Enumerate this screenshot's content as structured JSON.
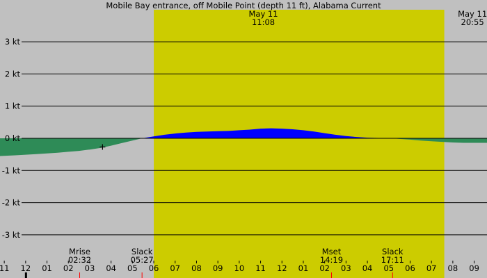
{
  "chart_data": {
    "type": "area",
    "title": "Mobile Bay entrance, off Mobile Point (depth 11 ft), Alabama Current",
    "xlabel": "",
    "ylabel": "",
    "ylim": [
      -3,
      3
    ],
    "y_ticks": [
      "3 kt",
      "2 kt",
      "1 kt",
      "0 kt",
      "-1 kt",
      "-2 kt",
      "-3 kt"
    ],
    "y_tick_values": [
      3,
      2,
      1,
      0,
      -1,
      -2,
      -3
    ],
    "x_tick_labels": [
      "11",
      "12",
      "01",
      "02",
      "03",
      "04",
      "05",
      "06",
      "07",
      "08",
      "09",
      "10",
      "11",
      "12",
      "01",
      "02",
      "03",
      "04",
      "05",
      "06",
      "07",
      "08",
      "09"
    ],
    "x_tick_hours": [
      -1,
      0,
      1,
      2,
      3,
      4,
      5,
      6,
      7,
      8,
      9,
      10,
      11,
      12,
      13,
      14,
      15,
      16,
      17,
      18,
      19,
      20,
      21
    ],
    "xlim_hours": [
      -1.2,
      21.6
    ],
    "daylight": {
      "start_hour": 6.0,
      "end_hour": 19.6
    },
    "sun_labels": [
      {
        "date": "May 11",
        "time": "11:08",
        "hour": 11.13
      },
      {
        "date": "May 11",
        "time": "20:55",
        "hour": 20.92
      }
    ],
    "events": [
      {
        "label": "Mrise",
        "time": "02:32",
        "hour": 2.53
      },
      {
        "label": "Slack",
        "time": "05:27",
        "hour": 5.45
      },
      {
        "label": "Mset",
        "time": "14:19",
        "hour": 14.32
      },
      {
        "label": "Slack",
        "time": "17:11",
        "hour": 17.18
      }
    ],
    "current_marker": {
      "hour": 3.6,
      "value": -0.27
    },
    "series": [
      {
        "x": [
          -1.2,
          -0.5,
          0.0,
          0.5,
          1.0,
          1.5,
          2.0,
          2.5,
          3.0,
          3.5,
          4.0,
          4.5,
          5.0,
          5.45,
          6.0,
          6.5,
          7.0,
          7.5,
          8.0,
          8.5,
          9.0,
          9.5,
          10.0,
          10.5,
          11.0,
          11.5,
          12.0,
          12.5,
          13.0,
          13.5,
          14.0,
          14.5,
          15.0,
          15.5,
          16.0,
          16.5,
          17.18,
          17.5,
          18.0,
          18.5,
          19.0,
          19.5,
          20.0,
          20.5,
          21.0,
          21.6
        ],
        "values": [
          -0.55,
          -0.53,
          -0.51,
          -0.49,
          -0.47,
          -0.45,
          -0.42,
          -0.39,
          -0.35,
          -0.3,
          -0.23,
          -0.15,
          -0.07,
          0.0,
          0.06,
          0.11,
          0.15,
          0.18,
          0.2,
          0.21,
          0.22,
          0.23,
          0.25,
          0.27,
          0.3,
          0.31,
          0.3,
          0.28,
          0.25,
          0.21,
          0.16,
          0.11,
          0.07,
          0.04,
          0.02,
          0.01,
          0.0,
          -0.02,
          -0.04,
          -0.07,
          -0.09,
          -0.11,
          -0.13,
          -0.14,
          -0.14,
          -0.14
        ],
        "flood_color": "#0000ff",
        "ebb_color": "#2e8b57"
      }
    ],
    "colors": {
      "night": "#c0c0c0",
      "day": "#cccc00",
      "gridline": "#000000",
      "event_tick": "#ff0000"
    }
  }
}
